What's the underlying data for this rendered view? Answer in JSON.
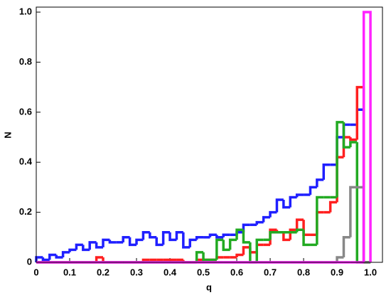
{
  "chart_data": {
    "type": "step-histogram",
    "xlabel": "q",
    "ylabel": "N",
    "xlim": [
      0,
      1.036
    ],
    "ylim": [
      0,
      1.02
    ],
    "xticks": [
      0,
      0.1,
      0.2,
      0.3,
      0.4,
      0.5,
      0.6,
      0.7,
      0.8,
      0.9,
      {
        "value": 1,
        "label": "1.0"
      }
    ],
    "yticks": [
      0,
      0.2,
      0.4,
      0.6,
      0.8,
      {
        "value": 1,
        "label": "1.0"
      }
    ],
    "bins": [
      0,
      0.02,
      0.04,
      0.06,
      0.08,
      0.1,
      0.12,
      0.14,
      0.16,
      0.18,
      0.2,
      0.22,
      0.24,
      0.26,
      0.28,
      0.3,
      0.32,
      0.34,
      0.36,
      0.38,
      0.4,
      0.42,
      0.44,
      0.46,
      0.48,
      0.5,
      0.52,
      0.54,
      0.56,
      0.58,
      0.6,
      0.62,
      0.64,
      0.66,
      0.68,
      0.7,
      0.72,
      0.74,
      0.76,
      0.78,
      0.8,
      0.82,
      0.84,
      0.86,
      0.88,
      0.9,
      0.92,
      0.94,
      0.96,
      0.98,
      1
    ],
    "series": [
      {
        "color": "#1f1fff",
        "values": [
          0.02,
          0.01,
          0.03,
          0.02,
          0.04,
          0.05,
          0.07,
          0.05,
          0.08,
          0.06,
          0.09,
          0.08,
          0.08,
          0.1,
          0.07,
          0.09,
          0.12,
          0.1,
          0.07,
          0.12,
          0.09,
          0.12,
          0.06,
          0.09,
          0.1,
          0.1,
          0.11,
          0.1,
          0.11,
          0.11,
          0.12,
          0.15,
          0.15,
          0.16,
          0.18,
          0.2,
          0.25,
          0.22,
          0.26,
          0.27,
          0.27,
          0.3,
          0.33,
          0.39,
          0.39,
          0.5,
          0.55,
          0.55,
          0.61,
          0
        ]
      },
      {
        "color": "#ff1f1f",
        "values": [
          0,
          0,
          0,
          0,
          0,
          0,
          0,
          0,
          0,
          0.02,
          0,
          0,
          0,
          0,
          0,
          0,
          0.01,
          0.01,
          0.01,
          0.01,
          0.01,
          0.01,
          0,
          0,
          0.01,
          0.01,
          0.01,
          0.02,
          0.02,
          0.02,
          0.03,
          0.06,
          0.04,
          0.07,
          0.07,
          0.13,
          0.12,
          0.09,
          0.13,
          0.17,
          0.11,
          0.11,
          0.2,
          0.2,
          0.24,
          0.42,
          0.5,
          0.49,
          0.7,
          0
        ]
      },
      {
        "color": "#22aa22",
        "values": [
          0,
          0,
          0,
          0,
          0,
          0,
          0,
          0,
          0,
          0,
          0,
          0,
          0,
          0,
          0,
          0,
          0,
          0,
          0,
          0,
          0,
          0,
          0,
          0,
          0.04,
          0.01,
          0.01,
          0.09,
          0.05,
          0.09,
          0.13,
          0.08,
          0,
          0.09,
          0.09,
          0.12,
          0.12,
          0.12,
          0.12,
          0.13,
          0.07,
          0.07,
          0.26,
          0.26,
          0.26,
          0.56,
          0.46,
          0.48,
          0,
          0
        ]
      },
      {
        "color": "#888888",
        "values": [
          0,
          0,
          0,
          0,
          0,
          0,
          0,
          0,
          0,
          0,
          0,
          0,
          0,
          0,
          0,
          0,
          0,
          0,
          0,
          0,
          0,
          0,
          0,
          0,
          0,
          0,
          0,
          0,
          0,
          0,
          0,
          0,
          0,
          0,
          0,
          0,
          0,
          0,
          0,
          0,
          0,
          0,
          0,
          0,
          0,
          0.02,
          0.1,
          0.3,
          0.3,
          0
        ]
      },
      {
        "color": "#ff22ff",
        "values": [
          0,
          0,
          0,
          0,
          0,
          0,
          0,
          0,
          0,
          0,
          0,
          0,
          0,
          0,
          0,
          0,
          0,
          0,
          0,
          0,
          0,
          0,
          0,
          0,
          0,
          0,
          0,
          0,
          0,
          0,
          0,
          0,
          0,
          0,
          0,
          0,
          0,
          0,
          0,
          0,
          0,
          0,
          0,
          0,
          0,
          0,
          0,
          0,
          0,
          1
        ]
      }
    ]
  }
}
